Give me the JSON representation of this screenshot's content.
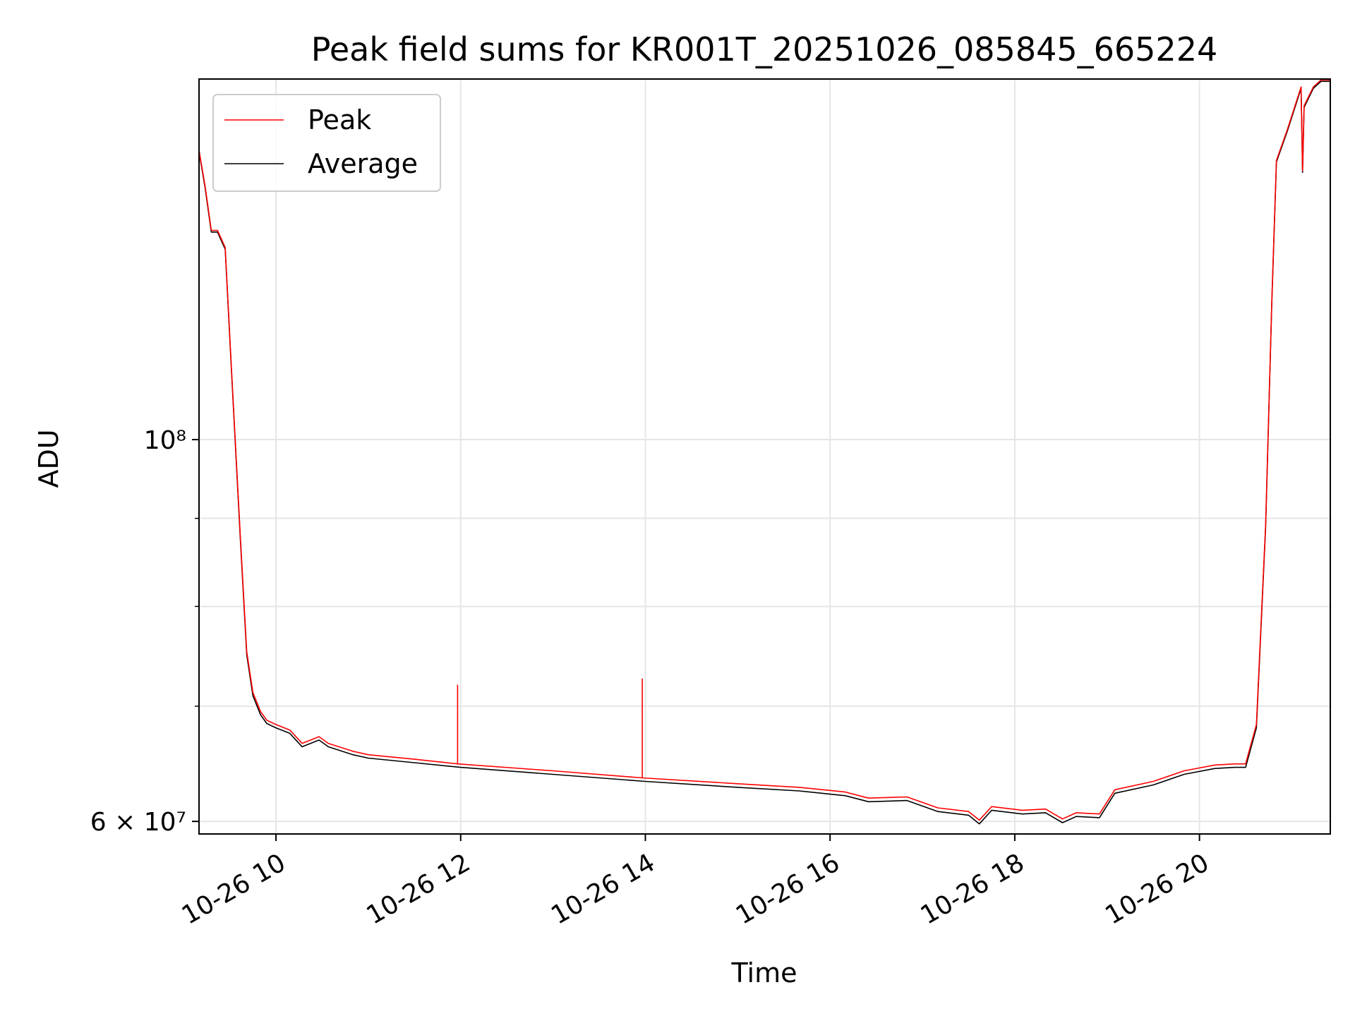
{
  "chart_data": {
    "type": "line",
    "title": "Peak field sums for KR001T_20251026_085845_665224",
    "xlabel": "Time",
    "ylabel": "ADU",
    "y_scale": "log",
    "xlim": [
      "2025-10-26 09:10",
      "2025-10-26 21:25"
    ],
    "ylim": [
      59000000,
      162000000
    ],
    "x_ticks": [
      {
        "value": "2025-10-26 10:00",
        "label": "10-26 10"
      },
      {
        "value": "2025-10-26 12:00",
        "label": "10-26 12"
      },
      {
        "value": "2025-10-26 14:00",
        "label": "10-26 14"
      },
      {
        "value": "2025-10-26 16:00",
        "label": "10-26 16"
      },
      {
        "value": "2025-10-26 18:00",
        "label": "10-26 18"
      },
      {
        "value": "2025-10-26 20:00",
        "label": "10-26 20"
      }
    ],
    "y_ticks": [
      {
        "value": 60000000,
        "label": "6 × 10⁷"
      },
      {
        "value": 100000000,
        "label": "10⁸"
      }
    ],
    "y_minor_ticks": [
      70000000,
      80000000,
      90000000
    ],
    "grid": true,
    "legend": {
      "position": "top-left",
      "entries": [
        "Peak",
        "Average"
      ]
    },
    "colors": {
      "Peak": "#ff0000",
      "Average": "#000000",
      "grid": "#e6e6e6"
    },
    "series": [
      {
        "name": "Average",
        "x": [
          "2025-10-26 09:10",
          "2025-10-26 09:14",
          "2025-10-26 09:18",
          "2025-10-26 09:22",
          "2025-10-26 09:27",
          "2025-10-26 09:31",
          "2025-10-26 09:37",
          "2025-10-26 09:41",
          "2025-10-26 09:45",
          "2025-10-26 09:50",
          "2025-10-26 09:54",
          "2025-10-26 10:00",
          "2025-10-26 10:09",
          "2025-10-26 10:17",
          "2025-10-26 10:28",
          "2025-10-26 10:34",
          "2025-10-26 10:50",
          "2025-10-26 11:00",
          "2025-10-26 11:30",
          "2025-10-26 12:00",
          "2025-10-26 13:00",
          "2025-10-26 14:00",
          "2025-10-26 15:00",
          "2025-10-26 15:40",
          "2025-10-26 16:10",
          "2025-10-26 16:25",
          "2025-10-26 16:50",
          "2025-10-26 17:10",
          "2025-10-26 17:30",
          "2025-10-26 17:37",
          "2025-10-26 17:45",
          "2025-10-26 18:05",
          "2025-10-26 18:20",
          "2025-10-26 18:31",
          "2025-10-26 18:40",
          "2025-10-26 18:55",
          "2025-10-26 19:05",
          "2025-10-26 19:30",
          "2025-10-26 19:50",
          "2025-10-26 20:10",
          "2025-10-26 20:23",
          "2025-10-26 20:30",
          "2025-10-26 20:37",
          "2025-10-26 20:43",
          "2025-10-26 20:47",
          "2025-10-26 20:50",
          "2025-10-26 20:57",
          "2025-10-26 21:06",
          "2025-10-26 21:07",
          "2025-10-26 21:08",
          "2025-10-26 21:14",
          "2025-10-26 21:19",
          "2025-10-26 21:25"
        ],
        "y": [
          147000000,
          140000000,
          132000000,
          132000000,
          129000000,
          110000000,
          87000000,
          75000000,
          71000000,
          69200000,
          68400000,
          68000000,
          67500000,
          66300000,
          66900000,
          66300000,
          65600000,
          65300000,
          64900000,
          64500000,
          63900000,
          63300000,
          62800000,
          62500000,
          62100000,
          61600000,
          61700000,
          60800000,
          60500000,
          59800000,
          60900000,
          60600000,
          60700000,
          59900000,
          60400000,
          60300000,
          62300000,
          63000000,
          63900000,
          64400000,
          64500000,
          64500000,
          68000000,
          89000000,
          120000000,
          145000000,
          151000000,
          160000000,
          143000000,
          156000000,
          160000000,
          161500000,
          161500000
        ]
      },
      {
        "name": "Peak",
        "x": [
          "2025-10-26 09:10",
          "2025-10-26 09:14",
          "2025-10-26 09:18",
          "2025-10-26 09:22",
          "2025-10-26 09:27",
          "2025-10-26 09:31",
          "2025-10-26 09:37",
          "2025-10-26 09:41",
          "2025-10-26 09:45",
          "2025-10-26 09:50",
          "2025-10-26 09:54",
          "2025-10-26 10:00",
          "2025-10-26 10:09",
          "2025-10-26 10:17",
          "2025-10-26 10:28",
          "2025-10-26 10:34",
          "2025-10-26 10:50",
          "2025-10-26 11:00",
          "2025-10-26 11:30",
          "2025-10-26 11:58",
          "2025-10-26 11:58",
          "2025-10-26 11:58",
          "2025-10-26 13:00",
          "2025-10-26 13:58",
          "2025-10-26 13:58",
          "2025-10-26 13:58",
          "2025-10-26 15:00",
          "2025-10-26 15:40",
          "2025-10-26 16:10",
          "2025-10-26 16:25",
          "2025-10-26 16:50",
          "2025-10-26 17:10",
          "2025-10-26 17:30",
          "2025-10-26 17:37",
          "2025-10-26 17:45",
          "2025-10-26 18:05",
          "2025-10-26 18:20",
          "2025-10-26 18:31",
          "2025-10-26 18:40",
          "2025-10-26 18:55",
          "2025-10-26 19:05",
          "2025-10-26 19:30",
          "2025-10-26 19:50",
          "2025-10-26 20:10",
          "2025-10-26 20:23",
          "2025-10-26 20:30",
          "2025-10-26 20:37",
          "2025-10-26 20:43",
          "2025-10-26 20:47",
          "2025-10-26 20:50",
          "2025-10-26 20:57",
          "2025-10-26 21:06",
          "2025-10-26 21:07",
          "2025-10-26 21:08",
          "2025-10-26 21:14",
          "2025-10-26 21:19",
          "2025-10-26 21:25"
        ],
        "y": [
          147300000,
          140300000,
          132300000,
          132300000,
          129300000,
          110300000,
          87300000,
          75300000,
          71300000,
          69500000,
          68700000,
          68300000,
          67800000,
          66600000,
          67200000,
          66600000,
          65900000,
          65600000,
          65200000,
          64800000,
          72000000,
          64800000,
          64200000,
          63600000,
          72600000,
          63600000,
          63100000,
          62800000,
          62400000,
          61900000,
          62000000,
          61100000,
          60800000,
          60100000,
          61200000,
          60900000,
          61000000,
          60200000,
          60700000,
          60600000,
          62600000,
          63300000,
          64200000,
          64700000,
          64800000,
          64800000,
          68300000,
          89300000,
          120300000,
          145300000,
          151300000,
          160300000,
          143300000,
          156300000,
          160300000,
          161800000,
          161800000
        ]
      }
    ]
  }
}
